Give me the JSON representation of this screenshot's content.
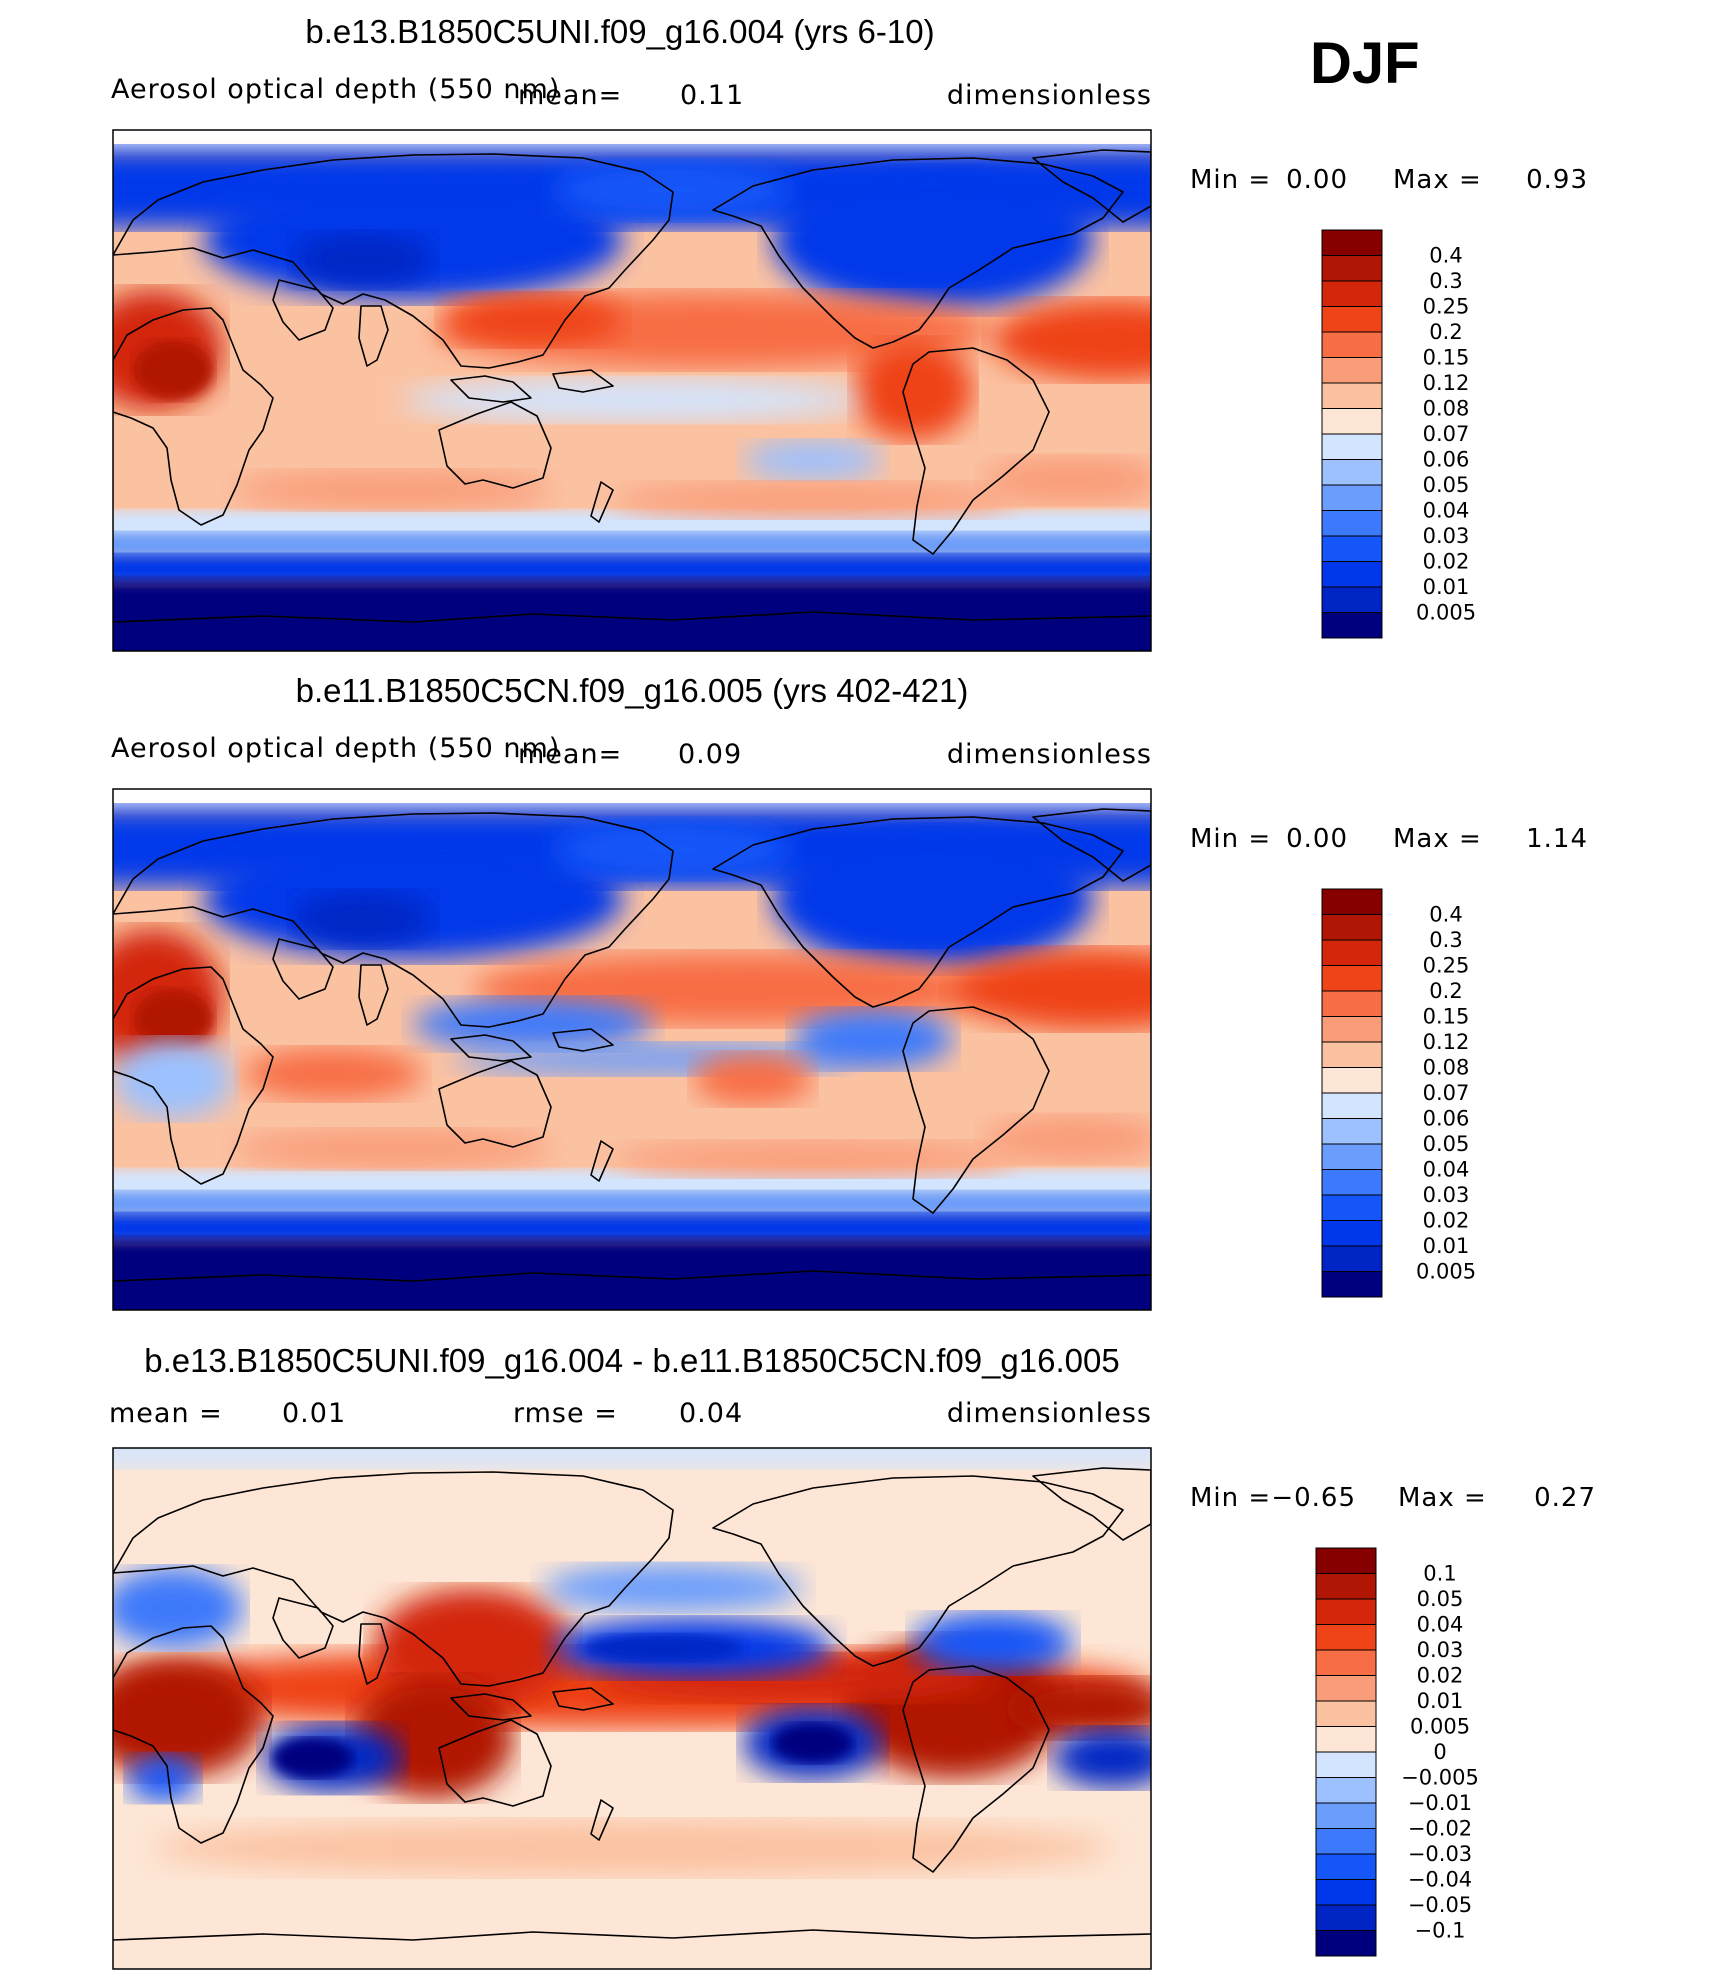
{
  "season": "DJF",
  "colors": {
    "seq": [
      "#00007f",
      "#0025c4",
      "#0037ea",
      "#1456f8",
      "#3d79fb",
      "#6b9dfc",
      "#9cc1fe",
      "#d3e5fe",
      "#fde6d5",
      "#fbc2a2",
      "#f99c79",
      "#f76d45",
      "#ef4318",
      "#d3260a",
      "#b11605",
      "#870000"
    ],
    "diff": [
      "#00007f",
      "#0025c4",
      "#0037ea",
      "#1456f8",
      "#3d79fb",
      "#6b9dfc",
      "#9cc1fe",
      "#d3e5fe",
      "#fde6d5",
      "#fbc2a2",
      "#f99c79",
      "#f76d45",
      "#ef4318",
      "#d3260a",
      "#b11605",
      "#870000"
    ],
    "coast": "#000000"
  },
  "chart_data": [
    {
      "type": "heatmap",
      "title": "b.e13.B1850C5UNI.f09_g16.004 (yrs 6-10)",
      "variable": "Aerosol optical depth (550 nm)",
      "mean_label": "mean=",
      "mean": "0.11",
      "units": "dimensionless",
      "min_label": "Min =",
      "min": "0.00",
      "max_label": "Max =",
      "max": "0.93",
      "levels": [
        "0.4",
        "0.3",
        "0.25",
        "0.2",
        "0.15",
        "0.12",
        "0.08",
        "0.07",
        "0.06",
        "0.05",
        "0.04",
        "0.03",
        "0.02",
        "0.01",
        "0.005"
      ],
      "pattern": "exp1"
    },
    {
      "type": "heatmap",
      "title": "b.e11.B1850C5CN.f09_g16.005 (yrs 402-421)",
      "variable": "Aerosol optical depth (550 nm)",
      "mean_label": "mean=",
      "mean": "0.09",
      "units": "dimensionless",
      "min_label": "Min =",
      "min": "0.00",
      "max_label": "Max =",
      "max": "1.14",
      "levels": [
        "0.4",
        "0.3",
        "0.25",
        "0.2",
        "0.15",
        "0.12",
        "0.08",
        "0.07",
        "0.06",
        "0.05",
        "0.04",
        "0.03",
        "0.02",
        "0.01",
        "0.005"
      ],
      "pattern": "exp2"
    },
    {
      "type": "heatmap",
      "title": "b.e13.B1850C5UNI.f09_g16.004 - b.e11.B1850C5CN.f09_g16.005",
      "mean_label": "mean =",
      "mean": "0.01",
      "rmse_label": "rmse =",
      "rmse": "0.04",
      "units": "dimensionless",
      "min_label": "Min =",
      "min": "−0.65",
      "max_label": "Max =",
      "max": "0.27",
      "levels": [
        "0.1",
        "0.05",
        "0.04",
        "0.03",
        "0.02",
        "0.01",
        "0.005",
        "0",
        "−0.005",
        "−0.01",
        "−0.02",
        "−0.03",
        "−0.04",
        "−0.05",
        "−0.1"
      ],
      "pattern": "diff"
    }
  ]
}
